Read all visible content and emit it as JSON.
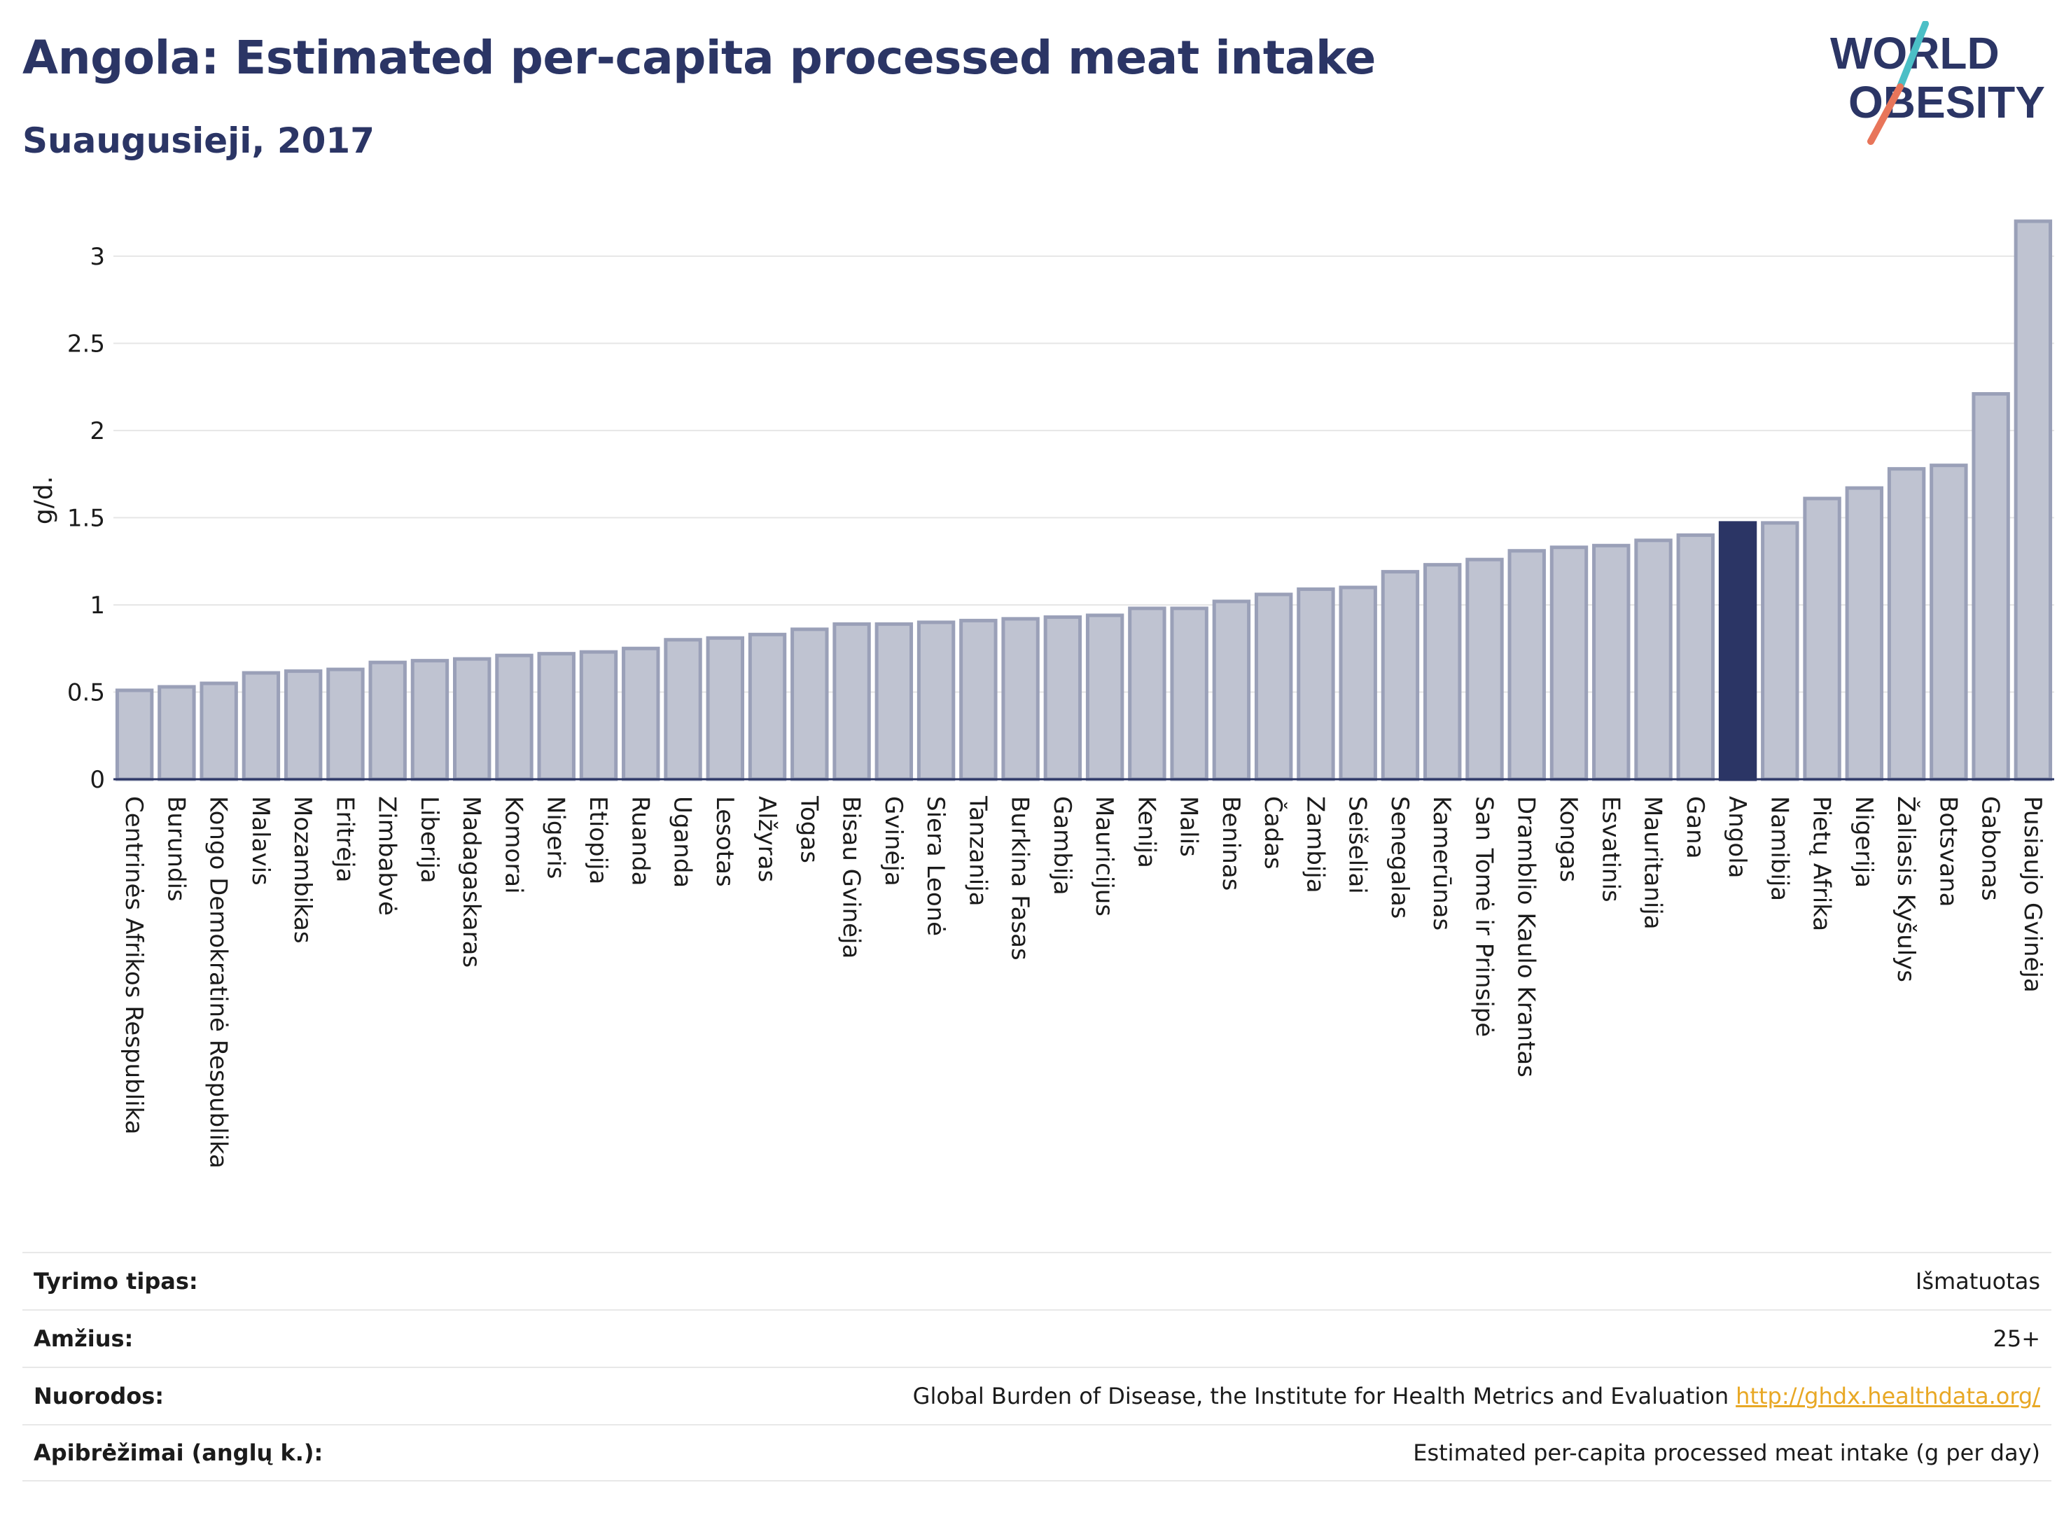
{
  "header": {
    "title": "Angola: Estimated per-capita processed meat intake",
    "subtitle": "Suaugusieji, 2017"
  },
  "logo": {
    "line1": "WORLD",
    "line2": "OBESITY",
    "slash_colors": [
      "#4bbfc6",
      "#e8755a"
    ],
    "text_color": "#2b3565"
  },
  "colors": {
    "bar": "#bfc3d1",
    "bar_edge": "#9aa0b8",
    "highlight": "#2b3565",
    "grid": "#e6e6e6",
    "axis": "#2b3565"
  },
  "chart_data": {
    "type": "bar",
    "ylabel": "g/d.",
    "ylim": [
      0,
      3.2
    ],
    "yticks": [
      0,
      0.5,
      1,
      1.5,
      2,
      2.5,
      3
    ],
    "ytick_labels": [
      "0",
      "0.5",
      "1",
      "1.5",
      "2",
      "2.5",
      "3"
    ],
    "grid": true,
    "highlight": "Angola",
    "categories": [
      "Centrinės Afrikos Respublika",
      "Burundis",
      "Kongo Demokratinė Respublika",
      "Malavis",
      "Mozambikas",
      "Eritrėja",
      "Zimbabvė",
      "Liberija",
      "Madagaskaras",
      "Komorai",
      "Nigeris",
      "Etiopija",
      "Ruanda",
      "Uganda",
      "Lesotas",
      "Alžyras",
      "Togas",
      "Bisau Gvinėja",
      "Gvinėja",
      "Siera Leonė",
      "Tanzanija",
      "Burkina Fasas",
      "Gambija",
      "Mauricijus",
      "Kenija",
      "Malis",
      "Beninas",
      "Čadas",
      "Zambija",
      "Seišeliai",
      "Senegalas",
      "Kamerūnas",
      "San Tomė ir Prinsipė",
      "Dramblio Kaulo Krantas",
      "Kongas",
      "Esvatinis",
      "Mauritanija",
      "Gana",
      "Angola",
      "Namibija",
      "Pietų Afrika",
      "Nigerija",
      "Žaliasis Kyšulys",
      "Botsvana",
      "Gabonas",
      "Pusiaujo Gvinėja"
    ],
    "values": [
      0.51,
      0.53,
      0.55,
      0.61,
      0.62,
      0.63,
      0.67,
      0.68,
      0.69,
      0.71,
      0.72,
      0.73,
      0.75,
      0.8,
      0.81,
      0.83,
      0.86,
      0.89,
      0.89,
      0.9,
      0.91,
      0.92,
      0.93,
      0.94,
      0.98,
      0.98,
      1.02,
      1.06,
      1.09,
      1.1,
      1.19,
      1.23,
      1.26,
      1.31,
      1.33,
      1.34,
      1.37,
      1.4,
      1.47,
      1.47,
      1.61,
      1.67,
      1.78,
      1.8,
      2.21,
      3.2
    ]
  },
  "info": {
    "rows": [
      {
        "label": "Tyrimo tipas:",
        "value": "Išmatuotas"
      },
      {
        "label": "Amžius:",
        "value": "25+"
      },
      {
        "label": "Nuorodos:",
        "value": "Global Burden of Disease, the Institute for Health Metrics and Evaluation",
        "link": "http://ghdx.healthdata.org/"
      },
      {
        "label": "Apibrėžimai (anglų k.):",
        "value": "Estimated per-capita processed meat intake (g per day)"
      }
    ]
  }
}
